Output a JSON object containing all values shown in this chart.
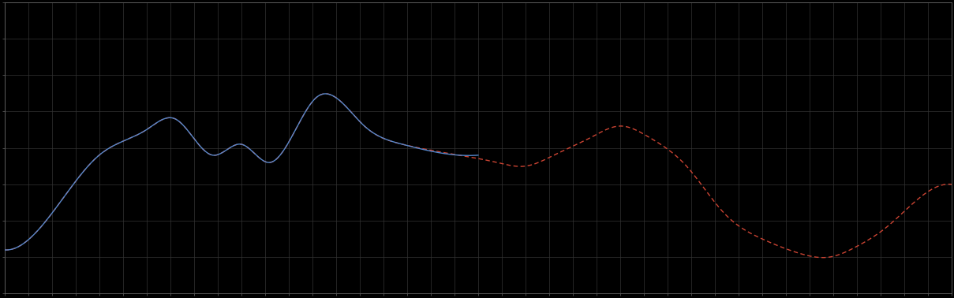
{
  "background_color": "#000000",
  "plot_bg_color": "#000000",
  "grid_color": "#333333",
  "line1_color": "#5588cc",
  "line2_color": "#cc4433",
  "xlim": [
    0,
    100
  ],
  "ylim": [
    0,
    8
  ],
  "figsize": [
    12.09,
    3.78
  ],
  "dpi": 100,
  "spine_color": "#666666",
  "tick_color": "#666666",
  "grid_nx": 40,
  "grid_ny": 8
}
